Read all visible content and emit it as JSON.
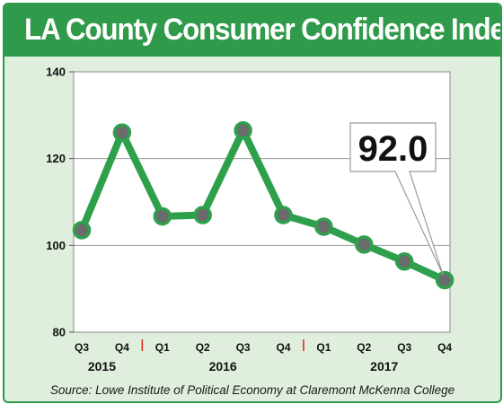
{
  "header": {
    "title": "LA County Consumer Confidence Index"
  },
  "footer": {
    "source": "Source: Lowe Institute of Political Economy at Claremont McKenna College"
  },
  "colors": {
    "accent": "#2e9a4a",
    "panel_bg": "#dfeedd",
    "line": "#2ea04c",
    "marker": "#6b6b6b",
    "separator": "#d9231c"
  },
  "chart_data": {
    "type": "line",
    "title": "LA County Consumer Confidence Index",
    "categories": [
      "Q3",
      "Q4",
      "Q1",
      "Q2",
      "Q3",
      "Q4",
      "Q1",
      "Q2",
      "Q3",
      "Q4"
    ],
    "years": [
      {
        "label": "2015",
        "from": 0,
        "to": 1
      },
      {
        "label": "2016",
        "from": 2,
        "to": 5
      },
      {
        "label": "2017",
        "from": 6,
        "to": 9
      }
    ],
    "year_separators_after": [
      1,
      5
    ],
    "series": [
      {
        "values": [
          103.5,
          126.0,
          106.7,
          107.0,
          126.5,
          107.0,
          104.3,
          100.2,
          96.3,
          92.0
        ]
      }
    ],
    "ylim": [
      80,
      140
    ],
    "yticks": [
      80,
      100,
      120,
      140
    ],
    "grid": "horizontal",
    "callout": {
      "text": "92.0",
      "point_index": 9
    }
  }
}
